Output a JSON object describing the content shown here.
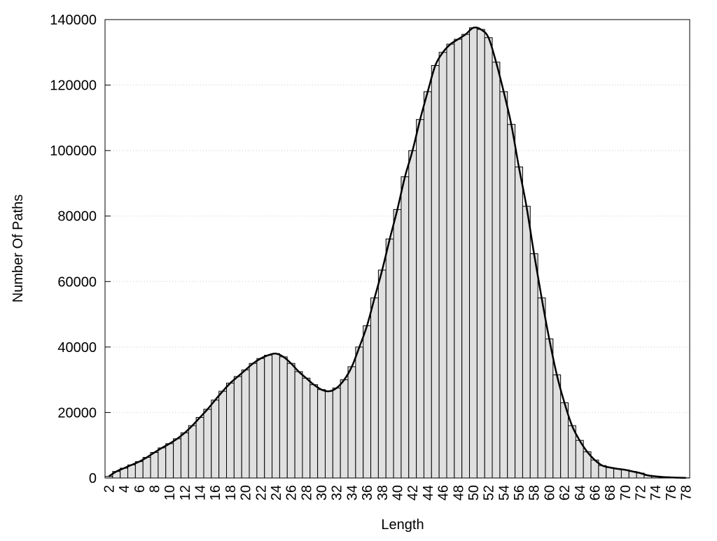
{
  "chart_data": {
    "type": "bar",
    "x_label": "Length",
    "y_label": "Number Of Paths",
    "x": [
      2,
      3,
      4,
      5,
      6,
      7,
      8,
      9,
      10,
      11,
      12,
      13,
      14,
      15,
      16,
      17,
      18,
      19,
      20,
      21,
      22,
      23,
      24,
      25,
      26,
      27,
      28,
      29,
      30,
      31,
      32,
      33,
      34,
      35,
      36,
      37,
      38,
      39,
      40,
      41,
      42,
      43,
      44,
      45,
      46,
      47,
      48,
      49,
      50,
      51,
      52,
      53,
      54,
      55,
      56,
      57,
      58,
      59,
      60,
      61,
      62,
      63,
      64,
      65,
      66,
      67,
      68,
      69,
      70,
      71,
      72,
      73,
      74,
      75,
      76,
      77,
      78
    ],
    "values": [
      500,
      2000,
      3000,
      4000,
      5000,
      6300,
      7800,
      9200,
      10500,
      12000,
      13800,
      16000,
      18500,
      21000,
      23800,
      26500,
      29000,
      31000,
      33000,
      35000,
      36500,
      37500,
      38000,
      37000,
      35000,
      32500,
      30500,
      28500,
      27000,
      26500,
      27500,
      30000,
      34000,
      40000,
      46500,
      55000,
      63500,
      73000,
      82000,
      92000,
      100000,
      109500,
      118000,
      126000,
      130000,
      132500,
      134000,
      135500,
      137500,
      137000,
      134500,
      127000,
      118000,
      108000,
      95000,
      83000,
      68500,
      55000,
      42500,
      31500,
      23000,
      16000,
      11500,
      8000,
      5500,
      3800,
      3200,
      2800,
      2500,
      2000,
      1500,
      800,
      500,
      300,
      200,
      100,
      50
    ],
    "color": "#e0e0e0",
    "edge_color": "#000000",
    "smooth_line": true,
    "line_color": "#000000",
    "xlim": [
      1.5,
      78.5
    ],
    "xticks": [
      2,
      4,
      6,
      8,
      10,
      12,
      14,
      16,
      18,
      20,
      22,
      24,
      26,
      28,
      30,
      32,
      34,
      36,
      38,
      40,
      42,
      44,
      46,
      48,
      50,
      52,
      54,
      56,
      58,
      60,
      62,
      64,
      66,
      68,
      70,
      72,
      74,
      76,
      78
    ],
    "ylim": [
      0,
      140000
    ],
    "yticks": [
      0,
      20000,
      40000,
      60000,
      80000,
      100000,
      120000,
      140000
    ],
    "grid": true
  }
}
